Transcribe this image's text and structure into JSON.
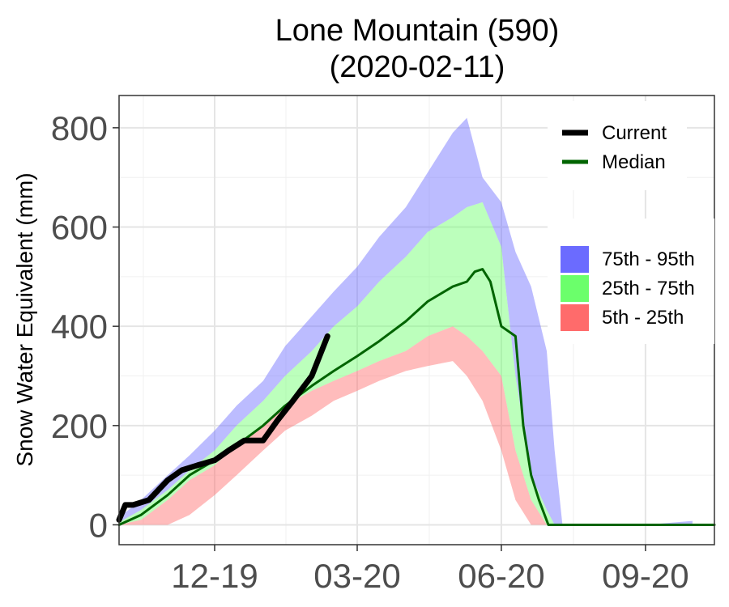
{
  "chart_data": {
    "type": "area",
    "title": "Lone Mountain (590)",
    "subtitle": "(2020-02-11)",
    "xlabel": "",
    "ylabel": "Snow Water Equivalent (mm)",
    "ylim": [
      -40,
      865
    ],
    "xlim": [
      "2019-10-01",
      "2020-10-15"
    ],
    "y_ticks": [
      0,
      200,
      400,
      600,
      800
    ],
    "x_ticks": [
      {
        "date": "2019-12-01",
        "label": "12-19"
      },
      {
        "date": "2020-03-01",
        "label": "03-20"
      },
      {
        "date": "2020-06-01",
        "label": "06-20"
      },
      {
        "date": "2020-09-01",
        "label": "09-20"
      }
    ],
    "grid": true,
    "legend_lines": [
      {
        "name": "Current",
        "color": "#000000"
      },
      {
        "name": "Median",
        "color": "#006400"
      }
    ],
    "legend_bands": [
      {
        "name": "75th - 95th",
        "color": "#6B6BFF"
      },
      {
        "name": "25th - 75th",
        "color": "#6BFF6B"
      },
      {
        "name": "5th - 25th",
        "color": "#FF6B6B"
      }
    ],
    "percentiles": {
      "dates": [
        "2019-10-01",
        "2019-10-15",
        "2019-11-01",
        "2019-11-15",
        "2019-12-01",
        "2019-12-15",
        "2020-01-01",
        "2020-01-15",
        "2020-02-01",
        "2020-02-15",
        "2020-03-01",
        "2020-03-15",
        "2020-04-01",
        "2020-04-15",
        "2020-05-01",
        "2020-05-10",
        "2020-05-20",
        "2020-06-01",
        "2020-06-10",
        "2020-06-20",
        "2020-06-30",
        "2020-07-05",
        "2020-07-10",
        "2020-07-15",
        "2020-08-01",
        "2020-09-01",
        "2020-10-01"
      ],
      "p95": [
        15,
        50,
        100,
        140,
        190,
        240,
        290,
        360,
        420,
        470,
        520,
        580,
        640,
        710,
        790,
        820,
        700,
        650,
        550,
        480,
        350,
        150,
        0,
        0,
        0,
        0,
        8
      ],
      "p75": [
        5,
        30,
        70,
        110,
        150,
        200,
        250,
        300,
        350,
        400,
        440,
        490,
        540,
        590,
        620,
        640,
        650,
        560,
        300,
        100,
        30,
        0,
        0,
        0,
        0,
        0,
        0
      ],
      "p25": [
        0,
        10,
        50,
        90,
        120,
        160,
        200,
        240,
        270,
        290,
        310,
        330,
        350,
        380,
        400,
        380,
        350,
        300,
        150,
        50,
        0,
        0,
        0,
        0,
        0,
        0,
        0
      ],
      "p5": [
        0,
        0,
        0,
        20,
        60,
        100,
        150,
        190,
        220,
        250,
        270,
        290,
        310,
        320,
        330,
        300,
        250,
        150,
        50,
        0,
        0,
        0,
        0,
        0,
        0,
        0,
        0
      ]
    },
    "series": [
      {
        "name": "Median",
        "color": "#006400",
        "dates": [
          "2019-10-01",
          "2019-10-15",
          "2019-11-01",
          "2019-11-15",
          "2019-12-01",
          "2019-12-15",
          "2020-01-01",
          "2020-01-15",
          "2020-02-01",
          "2020-02-15",
          "2020-03-01",
          "2020-03-15",
          "2020-04-01",
          "2020-04-15",
          "2020-05-01",
          "2020-05-10",
          "2020-05-15",
          "2020-05-20",
          "2020-05-25",
          "2020-06-01",
          "2020-06-10",
          "2020-06-15",
          "2020-06-20",
          "2020-06-25",
          "2020-07-01",
          "2020-07-03",
          "2020-10-15"
        ],
        "values": [
          0,
          20,
          60,
          100,
          130,
          160,
          200,
          240,
          280,
          310,
          340,
          370,
          410,
          450,
          480,
          490,
          510,
          515,
          490,
          400,
          380,
          200,
          100,
          50,
          0,
          0,
          0
        ]
      },
      {
        "name": "Current",
        "color": "#000000",
        "dates": [
          "2019-10-01",
          "2019-10-05",
          "2019-10-10",
          "2019-10-20",
          "2019-11-01",
          "2019-11-10",
          "2019-11-20",
          "2019-12-01",
          "2019-12-10",
          "2019-12-20",
          "2020-01-01",
          "2020-01-10",
          "2020-01-20",
          "2020-02-01",
          "2020-02-11"
        ],
        "values": [
          10,
          40,
          40,
          50,
          90,
          110,
          120,
          130,
          150,
          170,
          170,
          210,
          250,
          300,
          380
        ]
      }
    ]
  }
}
